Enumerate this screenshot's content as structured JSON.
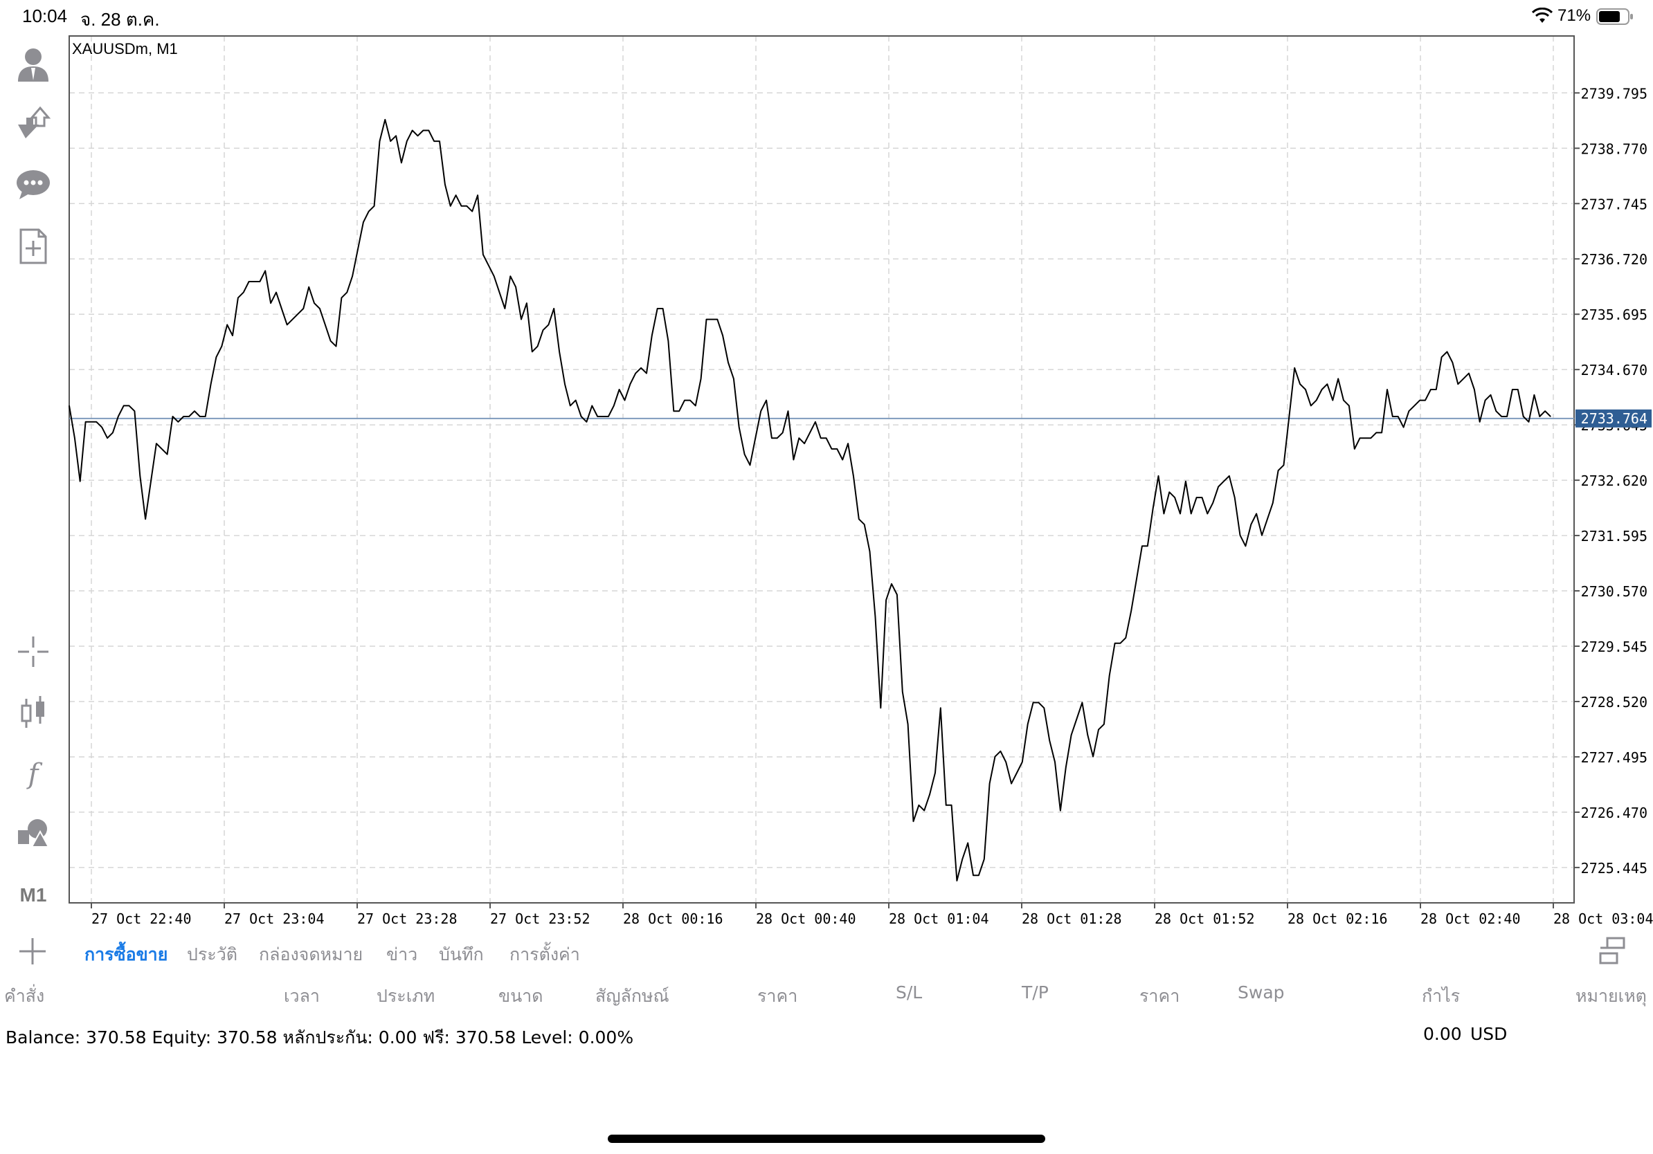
{
  "status_bar": {
    "time": "10:04",
    "date": "จ. 28 ต.ค.",
    "battery": "71%"
  },
  "toolbar": {
    "icons": [
      "account-icon",
      "trade-icon",
      "chat-icon",
      "new-order-icon",
      "crosshair-icon",
      "candlestick-icon",
      "indicator-icon",
      "objects-icon"
    ],
    "timeframe": "M1"
  },
  "chart": {
    "symbol_label": "XAUUSDm, M1",
    "current_price": "2733.764",
    "colors": {
      "line": "#000000",
      "grid": "#d6d6d6",
      "price_line": "#7f9bbd",
      "price_tag_bg": "#2f5e94",
      "price_tag_text": "#ffffff"
    }
  },
  "chart_data": {
    "type": "line",
    "title": "XAUUSDm, M1",
    "series": [
      {
        "name": "",
        "values": [
          2734.0,
          2733.4,
          2732.6,
          2733.7,
          2733.7,
          2733.7,
          2733.6,
          2733.4,
          2733.5,
          2733.8,
          2734.0,
          2734.0,
          2733.9,
          2732.7,
          2731.9,
          2732.6,
          2733.3,
          2733.2,
          2733.1,
          2733.8,
          2733.7,
          2733.8,
          2733.8,
          2733.9,
          2733.8,
          2733.8,
          2734.4,
          2734.9,
          2735.1,
          2735.5,
          2735.3,
          2736.0,
          2736.1,
          2736.3,
          2736.3,
          2736.3,
          2736.5,
          2735.9,
          2736.1,
          2735.8,
          2735.5,
          2735.6,
          2735.7,
          2735.8,
          2736.2,
          2735.9,
          2735.8,
          2735.5,
          2735.2,
          2735.1,
          2736.0,
          2736.1,
          2736.4,
          2736.9,
          2737.4,
          2737.6,
          2737.7,
          2738.9,
          2739.3,
          2738.9,
          2739.0,
          2738.5,
          2738.9,
          2739.1,
          2739.0,
          2739.1,
          2739.1,
          2738.9,
          2738.9,
          2738.1,
          2737.7,
          2737.9,
          2737.7,
          2737.7,
          2737.6,
          2737.9,
          2736.8,
          2736.6,
          2736.4,
          2736.1,
          2735.8,
          2736.4,
          2736.2,
          2735.6,
          2735.9,
          2735.0,
          2735.1,
          2735.4,
          2735.5,
          2735.8,
          2735.0,
          2734.4,
          2734.0,
          2734.1,
          2733.8,
          2733.7,
          2734.0,
          2733.8,
          2733.8,
          2733.8,
          2734.0,
          2734.3,
          2734.1,
          2734.4,
          2734.6,
          2734.7,
          2734.6,
          2735.3,
          2735.8,
          2735.8,
          2735.2,
          2733.9,
          2733.9,
          2734.1,
          2734.1,
          2734.0,
          2734.5,
          2735.6,
          2735.6,
          2735.6,
          2735.3,
          2734.8,
          2734.5,
          2733.6,
          2733.1,
          2732.9,
          2733.4,
          2733.9,
          2734.1,
          2733.4,
          2733.4,
          2733.5,
          2733.9,
          2733.0,
          2733.4,
          2733.3,
          2733.5,
          2733.7,
          2733.4,
          2733.4,
          2733.2,
          2733.2,
          2733.0,
          2733.3,
          2732.7,
          2731.9,
          2731.8,
          2731.3,
          2730.1,
          2728.4,
          2730.4,
          2730.7,
          2730.5,
          2728.7,
          2728.1,
          2726.3,
          2726.6,
          2726.5,
          2726.8,
          2727.2,
          2728.4,
          2726.6,
          2726.6,
          2725.2,
          2725.6,
          2725.9,
          2725.3,
          2725.3,
          2725.6,
          2727.0,
          2727.5,
          2727.6,
          2727.4,
          2727.0,
          2727.2,
          2727.4,
          2728.1,
          2728.5,
          2728.5,
          2728.4,
          2727.8,
          2727.4,
          2726.5,
          2727.3,
          2727.9,
          2728.2,
          2728.5,
          2727.9,
          2727.5,
          2728.0,
          2728.1,
          2729.0,
          2729.6,
          2729.6,
          2729.7,
          2730.2,
          2730.8,
          2731.4,
          2731.4,
          2732.1,
          2732.7,
          2732.0,
          2732.4,
          2732.3,
          2732.0,
          2732.6,
          2732.0,
          2732.3,
          2732.3,
          2732.0,
          2732.2,
          2732.5,
          2732.6,
          2732.7,
          2732.3,
          2731.6,
          2731.4,
          2731.8,
          2732.0,
          2731.6,
          2731.9,
          2732.2,
          2732.8,
          2732.9,
          2733.8,
          2734.7,
          2734.4,
          2734.3,
          2734.0,
          2734.1,
          2734.3,
          2734.4,
          2734.1,
          2734.5,
          2734.1,
          2734.0,
          2733.2,
          2733.4,
          2733.4,
          2733.4,
          2733.5,
          2733.5,
          2734.3,
          2733.8,
          2733.8,
          2733.6,
          2733.9,
          2734.0,
          2734.1,
          2734.1,
          2734.3,
          2734.3,
          2734.9,
          2735.0,
          2734.8,
          2734.4,
          2734.5,
          2734.6,
          2734.3,
          2733.7,
          2734.1,
          2734.2,
          2733.9,
          2733.8,
          2733.8,
          2734.3,
          2734.3,
          2733.8,
          2733.7,
          2734.2,
          2733.8,
          2733.9,
          2733.8
        ]
      }
    ],
    "y_ticks": [
      "2739.795",
      "2738.770",
      "2737.745",
      "2736.720",
      "2735.695",
      "2734.670",
      "2733.645",
      "2732.620",
      "2731.595",
      "2730.570",
      "2729.545",
      "2728.520",
      "2727.495",
      "2726.470",
      "2725.445"
    ],
    "x_ticks": [
      "27 Oct 22:40",
      "27 Oct 23:04",
      "27 Oct 23:28",
      "27 Oct 23:52",
      "28 Oct 00:16",
      "28 Oct 00:40",
      "28 Oct 01:04",
      "28 Oct 01:28",
      "28 Oct 01:52",
      "28 Oct 02:16",
      "28 Oct 02:40",
      "28 Oct 03:04"
    ],
    "ylim": [
      2724.79,
      2740.85
    ],
    "current_price": 2733.764,
    "grid": true
  },
  "tabs": [
    {
      "label": "การซื้อขาย",
      "active": true
    },
    {
      "label": "ประวัติ",
      "active": false
    },
    {
      "label": "กล่องจดหมาย",
      "active": false
    },
    {
      "label": "ข่าว",
      "active": false
    },
    {
      "label": "บันทึก",
      "active": false
    },
    {
      "label": "การตั้งค่า",
      "active": false
    }
  ],
  "columns": [
    "คำสั่ง",
    "เวลา",
    "ประเภท",
    "ขนาด",
    "สัญลักษณ์",
    "ราคา",
    "S/L",
    "T/P",
    "ราคา",
    "Swap",
    "กำไร",
    "หมายเหตุ"
  ],
  "account": {
    "summary": "Balance: 370.58 Equity: 370.58 หลักประกัน: 0.00 ฟรี: 370.58 Level: 0.00%",
    "profit": "0.00",
    "currency": "USD"
  }
}
